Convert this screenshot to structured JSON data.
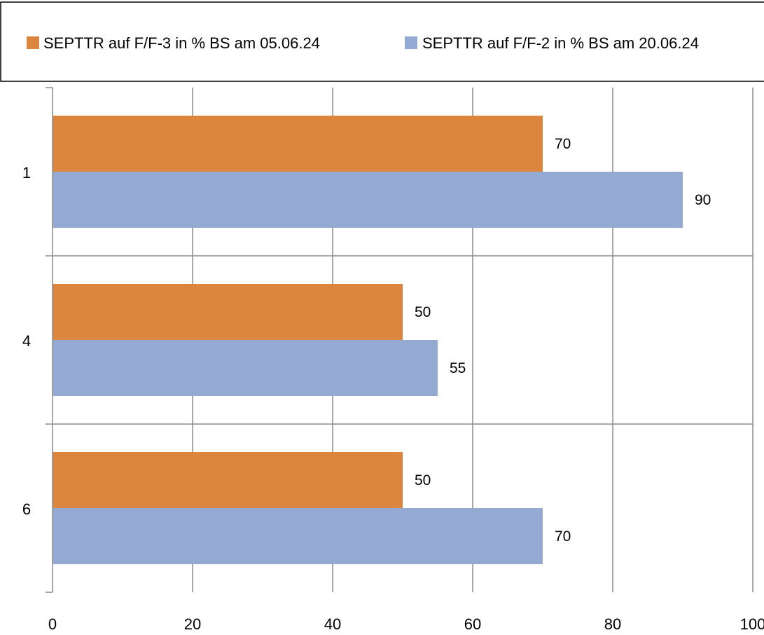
{
  "chart_data": {
    "type": "bar",
    "orientation": "horizontal",
    "categories": [
      "1",
      "4",
      "6"
    ],
    "series": [
      {
        "name": "SEPTTR auf F/F-3 in % BS am 05.06.24",
        "color": "#dc853f",
        "values": [
          70,
          50,
          50
        ]
      },
      {
        "name": "SEPTTR auf F/F-2 in % BS am 20.06.24",
        "color": "#95aad2",
        "values": [
          90,
          55,
          70
        ]
      }
    ],
    "xlim": [
      0,
      100
    ],
    "xticks": [
      "0",
      "20",
      "40",
      "60",
      "80",
      "100"
    ],
    "data_labels": true,
    "grid": true,
    "legend_position": "top",
    "title": "",
    "xlabel": "",
    "ylabel": ""
  }
}
